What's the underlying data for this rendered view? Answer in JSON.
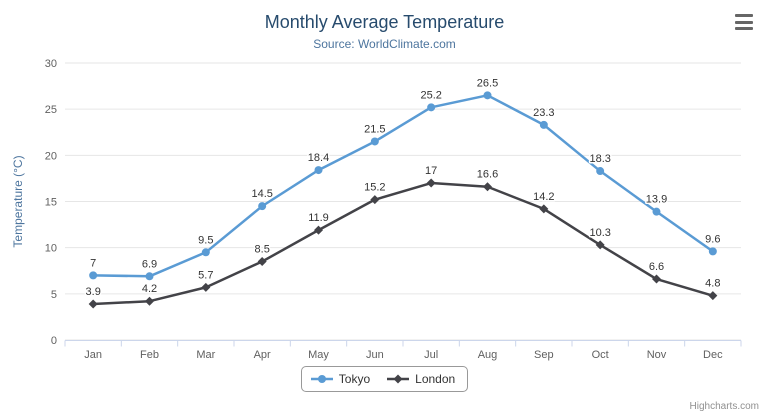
{
  "header": {
    "title": "Monthly Average Temperature",
    "subtitle": "Source: WorldClimate.com"
  },
  "chart_data": {
    "type": "line",
    "categories": [
      "Jan",
      "Feb",
      "Mar",
      "Apr",
      "May",
      "Jun",
      "Jul",
      "Aug",
      "Sep",
      "Oct",
      "Nov",
      "Dec"
    ],
    "series": [
      {
        "name": "Tokyo",
        "color": "#5a9bd4",
        "marker": "circle",
        "values": [
          7,
          6.9,
          9.5,
          14.5,
          18.4,
          21.5,
          25.2,
          26.5,
          23.3,
          18.3,
          13.9,
          9.6
        ]
      },
      {
        "name": "London",
        "color": "#434348",
        "marker": "diamond",
        "values": [
          3.9,
          4.2,
          5.7,
          8.5,
          11.9,
          15.2,
          17,
          16.6,
          14.2,
          10.3,
          6.6,
          4.8
        ]
      }
    ],
    "title": "Monthly Average Temperature",
    "subtitle": "Source: WorldClimate.com",
    "xlabel": "",
    "ylabel": "Temperature (°C)",
    "ylim": [
      0,
      30
    ],
    "ytick_step": 5,
    "grid": true,
    "data_labels": true,
    "legend_position": "bottom"
  },
  "colors": {
    "title": "#274b6d",
    "subtitle": "#4d759e",
    "axis_label": "#606060",
    "axis_title": "#4d759e",
    "grid_line": "#e6e6e6",
    "axis_line": "#ccd6eb",
    "data_label": "#333333"
  },
  "icons": {
    "context_menu": "hamburger"
  },
  "credits": {
    "label": "Highcharts.com"
  }
}
